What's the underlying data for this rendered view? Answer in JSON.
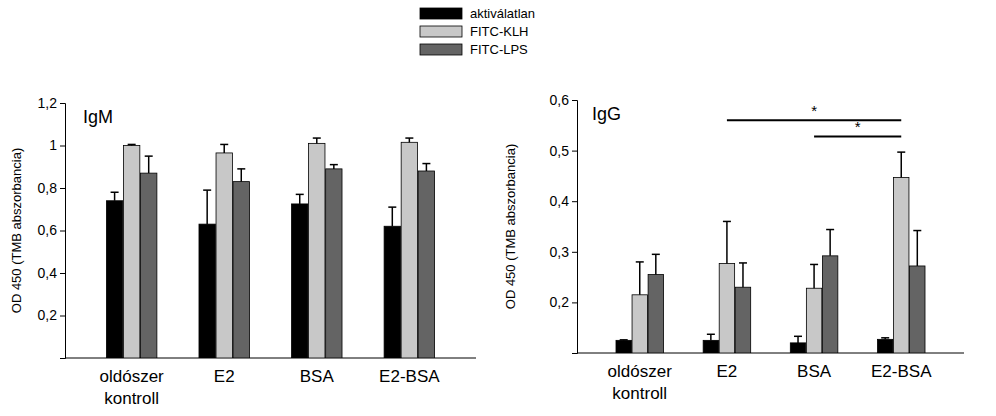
{
  "chart_data": [
    {
      "type": "bar",
      "title": "IgM",
      "y_label": "OD 450 (TMB abszorbancia)",
      "categories": [
        "oldószer kontroll",
        "E2",
        "BSA",
        "E2-BSA"
      ],
      "series": [
        {
          "name": "aktiválatlan",
          "color": "#000000",
          "values": [
            0.74,
            0.63,
            0.725,
            0.62
          ],
          "errors": [
            0.04,
            0.16,
            0.045,
            0.09
          ]
        },
        {
          "name": "FITC-KLH",
          "color": "#c8c8c8",
          "values": [
            1.0,
            0.965,
            1.01,
            1.015
          ],
          "errors": [
            0.005,
            0.04,
            0.025,
            0.02
          ]
        },
        {
          "name": "FITC-LPS",
          "color": "#646464",
          "values": [
            0.87,
            0.83,
            0.89,
            0.88
          ],
          "errors": [
            0.08,
            0.06,
            0.02,
            0.035
          ]
        }
      ],
      "ylim": [
        0,
        1.2
      ],
      "yticks": [
        {
          "value": 0.2,
          "label": "0,2"
        },
        {
          "value": 0.4,
          "label": "0,4"
        },
        {
          "value": 0.6,
          "label": "0,6"
        },
        {
          "value": 0.8,
          "label": "0,8"
        },
        1,
        {
          "value": 1.2,
          "label": "1,2"
        }
      ],
      "legend": "top"
    },
    {
      "type": "bar",
      "title": "IgG",
      "y_label": "OD 450 (TMB abszorbancia)",
      "categories": [
        "oldószer kontroll",
        "E2",
        "BSA",
        "E2-BSA"
      ],
      "series": [
        {
          "name": "aktiválatlan",
          "color": "#000000",
          "values": [
            0.125,
            0.125,
            0.12,
            0.127
          ],
          "errors": [
            0.001,
            0.012,
            0.013,
            0.003
          ]
        },
        {
          "name": "FITC-KLH",
          "color": "#c8c8c8",
          "values": [
            0.215,
            0.277,
            0.228,
            0.447
          ],
          "errors": [
            0.065,
            0.083,
            0.047,
            0.05
          ]
        },
        {
          "name": "FITC-LPS",
          "color": "#646464",
          "values": [
            0.255,
            0.23,
            0.292,
            0.272
          ],
          "errors": [
            0.04,
            0.048,
            0.052,
            0.07
          ]
        }
      ],
      "ylim": [
        0.1,
        0.6
      ],
      "yticks": [
        {
          "value": 0.2,
          "label": "0,2"
        },
        {
          "value": 0.3,
          "label": "0,3"
        },
        {
          "value": 0.4,
          "label": "0,4"
        },
        {
          "value": 0.5,
          "label": "0,5"
        },
        {
          "value": 0.6,
          "label": "0,6"
        }
      ],
      "annotations": [
        {
          "from": "E2",
          "to": "E2-BSA",
          "series": "FITC-KLH",
          "y": 0.56,
          "label": "*"
        },
        {
          "from": "BSA",
          "to": "E2-BSA",
          "series": "FITC-KLH",
          "y": 0.528,
          "label": "*"
        }
      ]
    }
  ]
}
